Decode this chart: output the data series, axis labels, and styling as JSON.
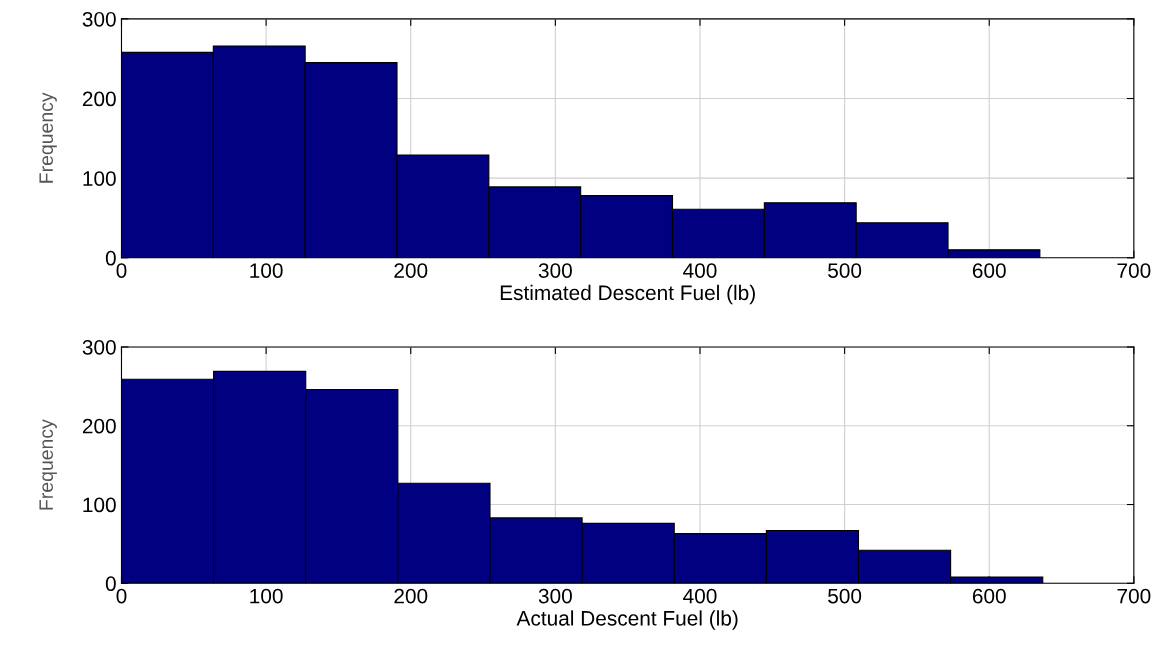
{
  "chart_data": [
    {
      "type": "histogram",
      "xlabel": "Estimated Descent Fuel (lb)",
      "ylabel": "Frequency",
      "bins": [
        0,
        63.5,
        127,
        190.5,
        254,
        317.5,
        381,
        444.5,
        508,
        571.5,
        635
      ],
      "values": [
        258,
        266,
        245,
        129,
        89,
        78,
        61,
        69,
        44,
        10
      ],
      "color": "#000080",
      "xlim": [
        0,
        700
      ],
      "xticks": [
        0,
        100,
        200,
        300,
        400,
        500,
        600,
        700
      ],
      "ylim": [
        0,
        300
      ],
      "yticks": [
        0,
        100,
        200,
        300
      ],
      "grid": true
    },
    {
      "type": "histogram",
      "xlabel": "Actual Descent Fuel (lb)",
      "ylabel": "Frequency",
      "bins": [
        0,
        63.7,
        127.4,
        191.1,
        254.8,
        318.5,
        382.2,
        445.9,
        509.6,
        573.3,
        637
      ],
      "values": [
        259,
        269,
        246,
        127,
        83,
        76,
        63,
        67,
        42,
        8
      ],
      "color": "#000080",
      "xlim": [
        0,
        700
      ],
      "xticks": [
        0,
        100,
        200,
        300,
        400,
        500,
        600,
        700
      ],
      "ylim": [
        0,
        300
      ],
      "yticks": [
        0,
        100,
        200,
        300
      ],
      "grid": true
    }
  ]
}
